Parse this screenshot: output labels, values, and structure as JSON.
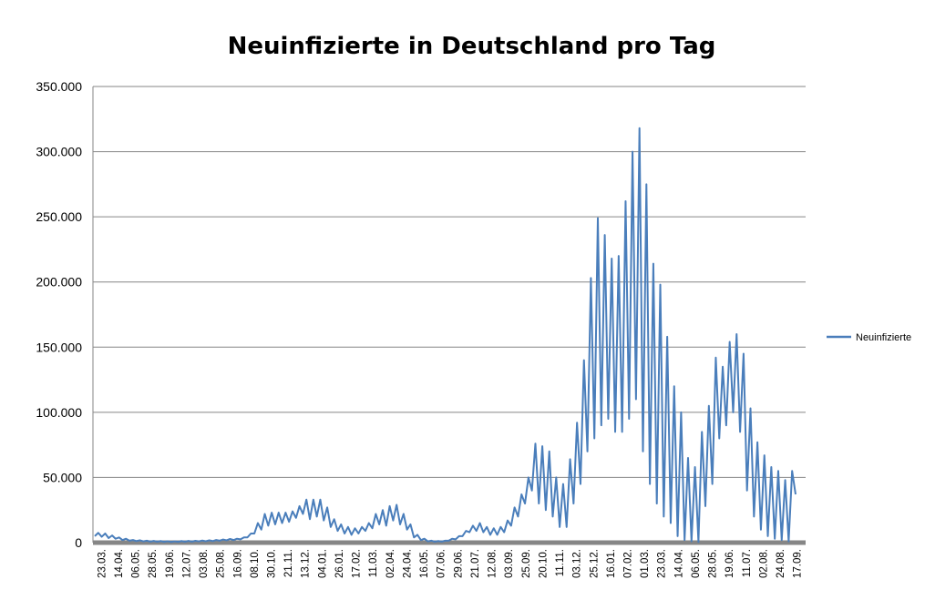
{
  "chart_data": {
    "type": "line",
    "title": "Neuinfizierte in Deutschland pro Tag",
    "xlabel": "",
    "ylabel": "",
    "ylim": [
      0,
      350000
    ],
    "y_ticks": [
      0,
      50000,
      100000,
      150000,
      200000,
      250000,
      300000,
      350000
    ],
    "y_tick_labels": [
      "0",
      "50.000",
      "100.000",
      "150.000",
      "200.000",
      "250.000",
      "300.000",
      "350.000"
    ],
    "x_tick_labels": [
      "23.03.",
      "14.04.",
      "06.05.",
      "28.05.",
      "19.06.",
      "12.07.",
      "03.08.",
      "25.08.",
      "16.09.",
      "08.10.",
      "30.10.",
      "21.11.",
      "13.12.",
      "04.01.",
      "26.01.",
      "17.02.",
      "11.03.",
      "02.04.",
      "24.04.",
      "16.05.",
      "07.06.",
      "29.06.",
      "21.07.",
      "12.08.",
      "03.09.",
      "25.09.",
      "20.10.",
      "11.11.",
      "03.12.",
      "25.12.",
      "16.01.",
      "07.02.",
      "01.03.",
      "23.03.",
      "14.04.",
      "06.05.",
      "28.05.",
      "19.06.",
      "11.07.",
      "02.08.",
      "24.08.",
      "17.09."
    ],
    "grid": true,
    "legend_position": "right",
    "series": [
      {
        "name": "Neuinfizierte",
        "color": "#4a7ebb",
        "values": [
          5000,
          7500,
          4500,
          7000,
          3500,
          5500,
          3000,
          4000,
          2000,
          3000,
          1500,
          2000,
          1200,
          1800,
          1000,
          1500,
          800,
          1300,
          700,
          1200,
          600,
          1100,
          500,
          1000,
          600,
          1200,
          700,
          1300,
          800,
          1400,
          1000,
          1600,
          1100,
          1800,
          1200,
          2000,
          1500,
          2400,
          1800,
          2800,
          2000,
          3000,
          2500,
          4000,
          4000,
          7000,
          7000,
          15000,
          10000,
          22000,
          13000,
          23000,
          14000,
          23000,
          15000,
          23000,
          16000,
          24000,
          19000,
          28000,
          22000,
          33000,
          18000,
          33000,
          20000,
          33000,
          17000,
          27000,
          12000,
          18000,
          9000,
          14000,
          7000,
          12000,
          6000,
          11000,
          7000,
          12000,
          9000,
          15000,
          11000,
          22000,
          14000,
          25000,
          13000,
          28000,
          17000,
          29000,
          14000,
          22000,
          10000,
          14000,
          4000,
          6000,
          2000,
          3000,
          1000,
          1500,
          700,
          1200,
          800,
          1500,
          1500,
          3000,
          2500,
          5000,
          5000,
          9000,
          8000,
          13000,
          9000,
          15000,
          8000,
          12000,
          6000,
          11000,
          6000,
          12000,
          8000,
          17000,
          13000,
          27000,
          20000,
          37000,
          30000,
          50000,
          40000,
          76000,
          30000,
          74000,
          25000,
          70000,
          20000,
          50000,
          12000,
          45000,
          12000,
          64000,
          30000,
          92000,
          45000,
          140000,
          70000,
          203000,
          80000,
          249000,
          90000,
          236000,
          95000,
          218000,
          85000,
          220000,
          85000,
          262000,
          95000,
          300000,
          110000,
          318000,
          70000,
          275000,
          45000,
          214000,
          30000,
          198000,
          20000,
          158000,
          15000,
          120000,
          5000,
          100000,
          2000,
          65000,
          1000,
          58000,
          500,
          85000,
          28000,
          105000,
          45000,
          142000,
          80000,
          135000,
          90000,
          154000,
          100000,
          160000,
          85000,
          145000,
          40000,
          103000,
          20000,
          77000,
          10000,
          67000,
          5000,
          58000,
          3000,
          55000,
          2000,
          48000,
          1000,
          55000,
          37000
        ]
      }
    ]
  }
}
